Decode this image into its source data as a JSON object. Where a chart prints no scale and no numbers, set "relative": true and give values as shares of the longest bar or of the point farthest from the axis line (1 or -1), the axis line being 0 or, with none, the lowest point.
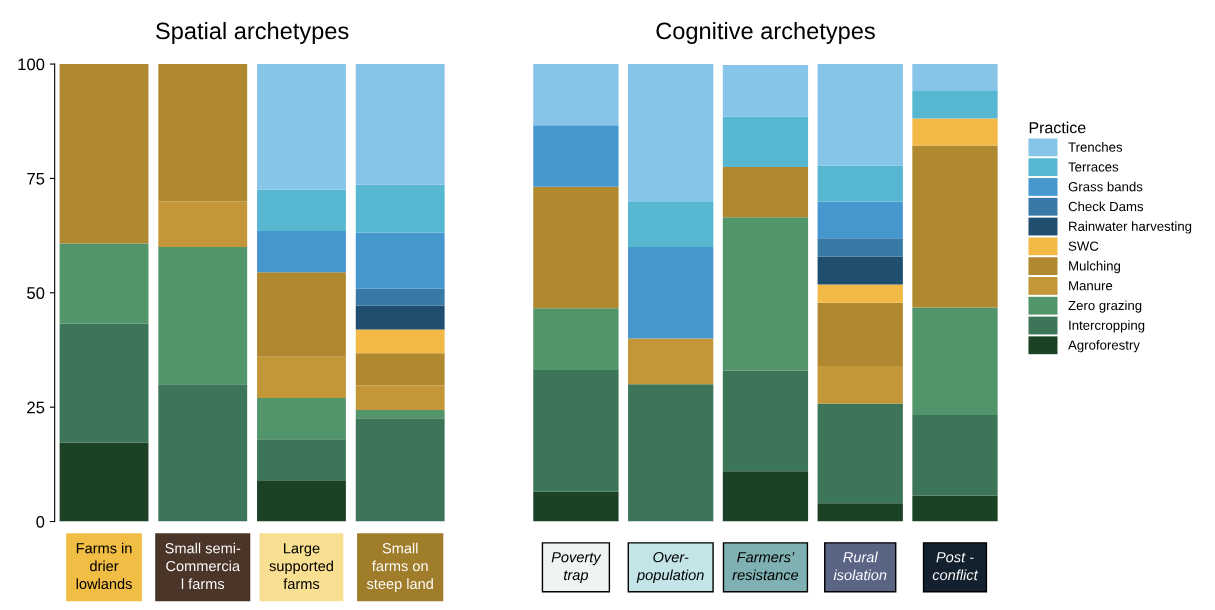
{
  "chart_data": [
    {
      "type": "bar",
      "stacked": true,
      "title": "Spatial archetypes",
      "categories": [
        "Farms in\ndrier\nlowlands",
        "Small semi-\nCommercia\nl farms",
        "Large\nsupported\nfarms",
        "Small\nfarms on\nsteep land"
      ],
      "ylim": [
        0,
        100
      ],
      "yticks": [
        0,
        25,
        50,
        75,
        100
      ],
      "grid": false,
      "legend": "right",
      "legend_title": "Practice",
      "series": [
        {
          "name": "Agroforestry",
          "color": "#1b4225",
          "values": [
            17.3,
            null,
            9,
            null
          ]
        },
        {
          "name": "Intercropping",
          "color": "#3d7559",
          "values": [
            26,
            30,
            9,
            22.6
          ]
        },
        {
          "name": "Zero grazing",
          "color": "#52956b",
          "values": [
            17.5,
            30,
            9,
            1.8
          ]
        },
        {
          "name": "Manure",
          "color": "#c39638",
          "values": [
            null,
            10,
            9,
            5.4
          ]
        },
        {
          "name": "Mulching",
          "color": "#b08830",
          "values": [
            39.2,
            30,
            18.5,
            7
          ]
        },
        {
          "name": "SWC",
          "color": "#f2b946",
          "values": [
            null,
            null,
            null,
            5.2
          ]
        },
        {
          "name": "Rainwater harvesting",
          "color": "#1f4e6e",
          "values": [
            null,
            null,
            null,
            5.2
          ]
        },
        {
          "name": "Check Dams",
          "color": "#3879a6",
          "values": [
            null,
            null,
            null,
            3.7
          ]
        },
        {
          "name": "Grass bands",
          "color": "#4797cf",
          "values": [
            null,
            null,
            9,
            12.3
          ]
        },
        {
          "name": "Terraces",
          "color": "#57b7d1",
          "values": [
            null,
            null,
            9,
            10.4
          ]
        },
        {
          "name": "Trenches",
          "color": "#86c4e8",
          "values": [
            null,
            null,
            27.5,
            26.4
          ]
        }
      ]
    },
    {
      "type": "bar",
      "stacked": true,
      "relative": true,
      "title": "Cognitive archetypes",
      "categories": [
        "Poverty\ntrap",
        "Over-\npopulation",
        "Farmers’\nresistance",
        "Rural\nisolation",
        "Post -\nconflict"
      ],
      "grid": false,
      "legend": "right",
      "series": [
        {
          "name": "Agroforestry",
          "color": "#1b4225",
          "values": [
            0.065,
            null,
            0.11,
            0.04,
            0.057
          ]
        },
        {
          "name": "Intercropping",
          "color": "#3d7559",
          "values": [
            0.266,
            0.3,
            0.22,
            0.218,
            0.176
          ]
        },
        {
          "name": "Zero grazing",
          "color": "#52956b",
          "values": [
            0.135,
            null,
            0.335,
            null,
            0.235
          ]
        },
        {
          "name": "Manure",
          "color": "#c39638",
          "values": [
            null,
            0.1,
            null,
            0.082,
            null
          ]
        },
        {
          "name": "Mulching",
          "color": "#b08830",
          "values": [
            0.266,
            null,
            0.11,
            0.138,
            0.354
          ]
        },
        {
          "name": "SWC",
          "color": "#f2b946",
          "values": [
            null,
            null,
            null,
            0.04,
            0.059
          ]
        },
        {
          "name": "Rainwater harvesting",
          "color": "#1f4e6e",
          "values": [
            null,
            null,
            null,
            0.061,
            null
          ]
        },
        {
          "name": "Check Dams",
          "color": "#3879a6",
          "values": [
            null,
            null,
            null,
            0.04,
            null
          ]
        },
        {
          "name": "Grass bands",
          "color": "#4797cf",
          "values": [
            0.134,
            0.2,
            null,
            0.08,
            null
          ]
        },
        {
          "name": "Terraces",
          "color": "#57b7d1",
          "values": [
            null,
            0.1,
            0.11,
            0.079,
            0.06
          ]
        },
        {
          "name": "Trenches",
          "color": "#86c4e8",
          "values": [
            0.134,
            0.3,
            0.113,
            0.222,
            0.059
          ]
        }
      ]
    }
  ]
}
